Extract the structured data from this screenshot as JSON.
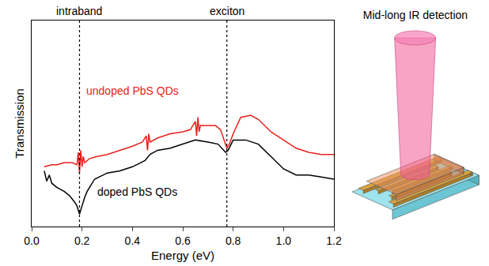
{
  "chart_data": {
    "type": "line",
    "x_label": "Energy (eV)",
    "y_label": "Transmission",
    "xlim": [
      0,
      1.2
    ],
    "xticks": [
      {
        "value": 0,
        "label": "0.0"
      },
      0.2,
      0.4,
      0.6,
      0.8,
      {
        "value": 1,
        "label": "1.0"
      },
      1.2
    ],
    "ylim": [
      0,
      1
    ],
    "tick_labels": "x",
    "grid": false,
    "series": [
      {
        "name": "undoped PbS QDs",
        "color": "#e8211c",
        "label_x": 0.4,
        "label_y": 0.66,
        "x": [
          0.05,
          0.08,
          0.1,
          0.13,
          0.16,
          0.18,
          0.185,
          0.19,
          0.195,
          0.2,
          0.205,
          0.21,
          0.23,
          0.26,
          0.3,
          0.35,
          0.4,
          0.44,
          0.455,
          0.46,
          0.465,
          0.47,
          0.5,
          0.55,
          0.6,
          0.63,
          0.65,
          0.655,
          0.66,
          0.665,
          0.67,
          0.7,
          0.73,
          0.75,
          0.765,
          0.775,
          0.785,
          0.8,
          0.83,
          0.87,
          0.9,
          0.95,
          1.0,
          1.05,
          1.1,
          1.15,
          1.2
        ],
        "values": [
          0.29,
          0.3,
          0.3,
          0.31,
          0.31,
          0.3,
          0.36,
          0.26,
          0.37,
          0.29,
          0.34,
          0.31,
          0.33,
          0.34,
          0.35,
          0.37,
          0.39,
          0.41,
          0.44,
          0.37,
          0.45,
          0.41,
          0.43,
          0.45,
          0.46,
          0.47,
          0.51,
          0.44,
          0.53,
          0.46,
          0.49,
          0.49,
          0.49,
          0.47,
          0.42,
          0.38,
          0.4,
          0.45,
          0.53,
          0.54,
          0.52,
          0.46,
          0.42,
          0.38,
          0.36,
          0.35,
          0.35
        ]
      },
      {
        "name": "doped PbS QDs",
        "color": "#000000",
        "label_x": 0.42,
        "label_y": 0.17,
        "x": [
          0.05,
          0.06,
          0.07,
          0.08,
          0.1,
          0.13,
          0.15,
          0.17,
          0.18,
          0.19,
          0.2,
          0.21,
          0.22,
          0.25,
          0.3,
          0.35,
          0.4,
          0.45,
          0.47,
          0.5,
          0.55,
          0.6,
          0.65,
          0.7,
          0.74,
          0.77,
          0.78,
          0.8,
          0.85,
          0.9,
          0.95,
          1.0,
          1.05,
          1.1,
          1.15,
          1.2
        ],
        "values": [
          0.27,
          0.22,
          0.25,
          0.21,
          0.19,
          0.17,
          0.15,
          0.12,
          0.1,
          0.06,
          0.1,
          0.14,
          0.17,
          0.23,
          0.26,
          0.27,
          0.29,
          0.32,
          0.35,
          0.37,
          0.38,
          0.4,
          0.42,
          0.41,
          0.4,
          0.36,
          0.37,
          0.42,
          0.42,
          0.4,
          0.34,
          0.28,
          0.25,
          0.25,
          0.24,
          0.23
        ]
      }
    ],
    "annotations": [
      {
        "text": "intraband",
        "x": 0.19,
        "line_style": "dot"
      },
      {
        "text": "exciton",
        "x": 0.775,
        "line_style": "dot"
      }
    ]
  },
  "diagram": {
    "title": "Mid-long IR detection"
  }
}
